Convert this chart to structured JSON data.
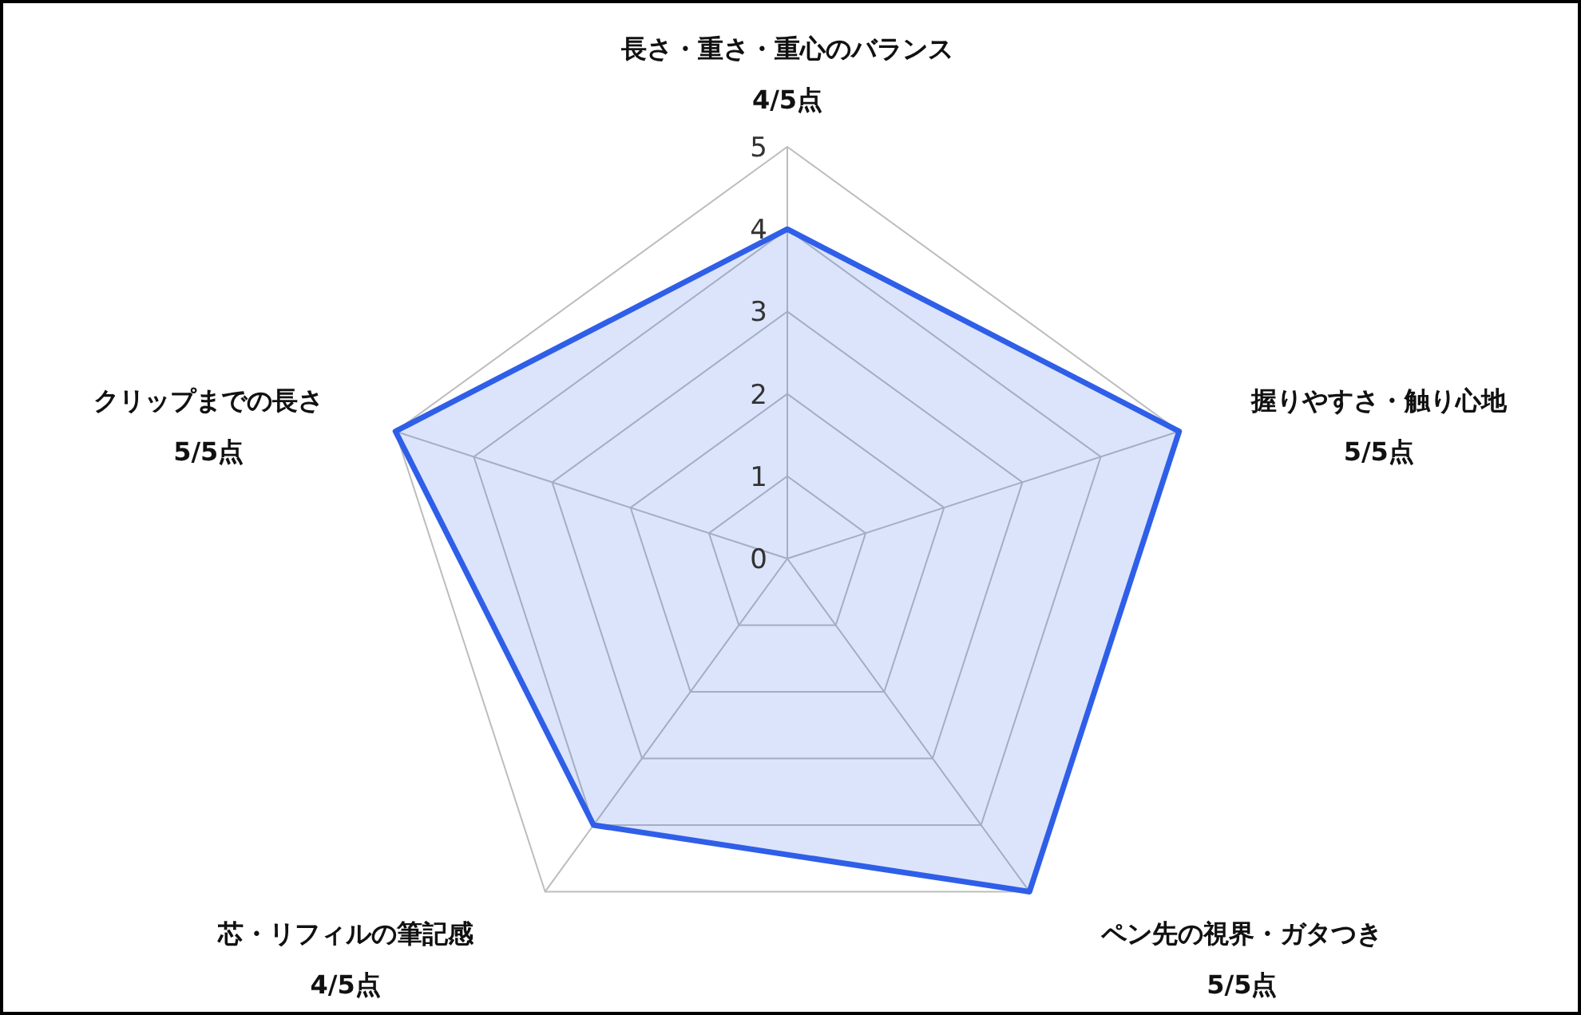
{
  "chart_data": {
    "type": "radar",
    "categories": [
      "長さ・重さ・重心のバランス\n4/5点",
      "握りやすさ・触り心地\n5/5点",
      "ペン先の視界・ガタつき\n5/5点",
      "芯・リフィルの筆記感\n4/5点",
      "クリップまでの長さ\n5/5点"
    ],
    "ylim": [
      0,
      5
    ],
    "yticks": [
      0,
      1,
      2,
      3,
      4,
      5
    ],
    "grid": true,
    "series": [
      {
        "color": "#2f5fe8",
        "values": [
          4,
          5,
          5,
          4,
          5
        ]
      }
    ]
  }
}
